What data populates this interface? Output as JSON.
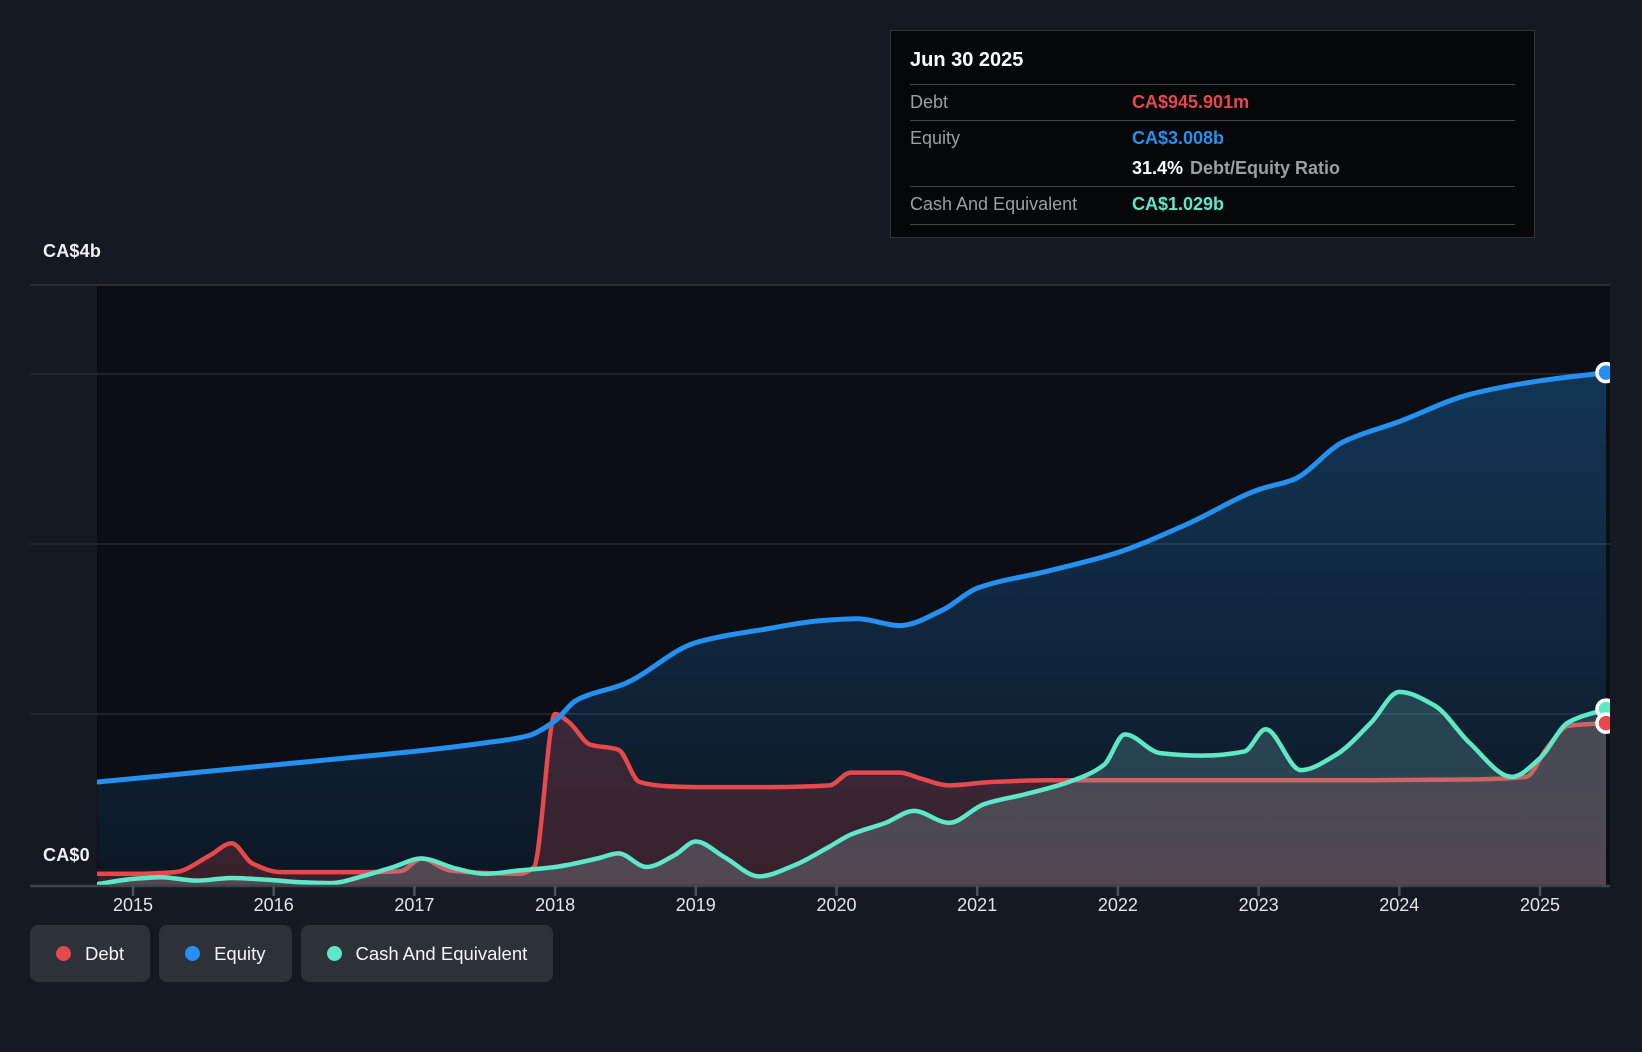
{
  "colors": {
    "debt": "#e5484d",
    "equity": "#2490ef",
    "cash": "#5fe8c8",
    "page_bg": "#151922",
    "plot_bg": "#0b0e14",
    "gridline": "#262a31",
    "axis_line": "#3c434b"
  },
  "tooltip": {
    "date": "Jun 30 2025",
    "debt_label": "Debt",
    "debt_value": "CA$945.901m",
    "equity_label": "Equity",
    "equity_value": "CA$3.008b",
    "ratio_value": "31.4%",
    "ratio_label": "Debt/Equity Ratio",
    "cash_label": "Cash And Equivalent",
    "cash_value": "CA$1.029b"
  },
  "legend": {
    "items": [
      {
        "label": "Debt",
        "color": "#e5484d"
      },
      {
        "label": "Equity",
        "color": "#2490ef"
      },
      {
        "label": "Cash And Equivalent",
        "color": "#5fe8c8"
      }
    ]
  },
  "y_axis": {
    "top_label": "CA$4b",
    "bottom_label": "CA$0"
  },
  "chart_data": {
    "type": "area",
    "currency": "CA$",
    "unit": "billions",
    "ylim": [
      0,
      4
    ],
    "y_gridline_values": [
      1,
      2,
      3
    ],
    "y_axis_labels": {
      "top": "CA$4b",
      "bottom": "CA$0"
    },
    "x_ticks": [
      "2015",
      "2016",
      "2017",
      "2018",
      "2019",
      "2020",
      "2021",
      "2022",
      "2023",
      "2024",
      "2025"
    ],
    "grid": true,
    "legend_position": "bottom-left",
    "series": [
      {
        "name": "Equity",
        "color": "#2490ef",
        "x": [
          2014.75,
          2015.0,
          2015.5,
          2016.0,
          2016.5,
          2017.0,
          2017.5,
          2017.8,
          2018.0,
          2018.15,
          2018.5,
          2019.0,
          2019.5,
          2019.9,
          2020.15,
          2020.45,
          2020.75,
          2021.0,
          2021.5,
          2022.0,
          2022.5,
          2023.0,
          2023.25,
          2023.6,
          2024.0,
          2024.5,
          2025.0,
          2025.47
        ],
        "values": [
          0.6,
          0.62,
          0.66,
          0.7,
          0.74,
          0.78,
          0.83,
          0.87,
          0.96,
          1.08,
          1.18,
          1.42,
          1.5,
          1.55,
          1.56,
          1.52,
          1.61,
          1.74,
          1.84,
          1.95,
          2.12,
          2.32,
          2.38,
          2.6,
          2.72,
          2.88,
          2.96,
          3.008
        ]
      },
      {
        "name": "Debt",
        "color": "#e5484d",
        "x": [
          2014.75,
          2015.0,
          2015.3,
          2015.55,
          2015.7,
          2015.85,
          2016.05,
          2016.35,
          2016.65,
          2016.9,
          2017.05,
          2017.25,
          2017.5,
          2017.75,
          2017.85,
          2018.0,
          2018.1,
          2018.25,
          2018.45,
          2018.6,
          2018.8,
          2019.0,
          2019.5,
          2019.95,
          2020.1,
          2020.45,
          2020.6,
          2020.8,
          2021.1,
          2021.5,
          2022.0,
          2022.5,
          2023.0,
          2023.5,
          2024.0,
          2024.5,
          2024.9,
          2025.05,
          2025.2,
          2025.47
        ],
        "values": [
          0.06,
          0.06,
          0.07,
          0.17,
          0.24,
          0.12,
          0.07,
          0.07,
          0.07,
          0.075,
          0.15,
          0.08,
          0.065,
          0.06,
          0.1,
          1.0,
          0.95,
          0.82,
          0.79,
          0.6,
          0.575,
          0.57,
          0.57,
          0.58,
          0.655,
          0.655,
          0.62,
          0.58,
          0.6,
          0.61,
          0.61,
          0.61,
          0.61,
          0.61,
          0.612,
          0.615,
          0.63,
          0.8,
          0.93,
          0.946
        ]
      },
      {
        "name": "Cash And Equivalent",
        "color": "#5fe8c8",
        "x": [
          2014.75,
          2015.0,
          2015.2,
          2015.45,
          2015.7,
          2015.95,
          2016.2,
          2016.4,
          2016.65,
          2016.85,
          2017.05,
          2017.3,
          2017.5,
          2017.75,
          2018.0,
          2018.3,
          2018.45,
          2018.65,
          2018.85,
          2019.0,
          2019.2,
          2019.45,
          2019.7,
          2019.95,
          2020.1,
          2020.35,
          2020.55,
          2020.8,
          2021.05,
          2021.35,
          2021.65,
          2021.9,
          2022.05,
          2022.3,
          2022.6,
          2022.9,
          2023.05,
          2023.3,
          2023.55,
          2023.8,
          2024.0,
          2024.25,
          2024.5,
          2024.8,
          2025.0,
          2025.2,
          2025.47
        ],
        "values": [
          0.0,
          0.03,
          0.04,
          0.02,
          0.035,
          0.025,
          0.01,
          0.005,
          0.05,
          0.1,
          0.15,
          0.09,
          0.06,
          0.08,
          0.1,
          0.15,
          0.18,
          0.1,
          0.17,
          0.25,
          0.16,
          0.045,
          0.11,
          0.22,
          0.29,
          0.36,
          0.43,
          0.36,
          0.47,
          0.53,
          0.6,
          0.7,
          0.88,
          0.77,
          0.755,
          0.78,
          0.91,
          0.67,
          0.76,
          0.95,
          1.13,
          1.05,
          0.83,
          0.63,
          0.74,
          0.95,
          1.029
        ]
      }
    ]
  }
}
